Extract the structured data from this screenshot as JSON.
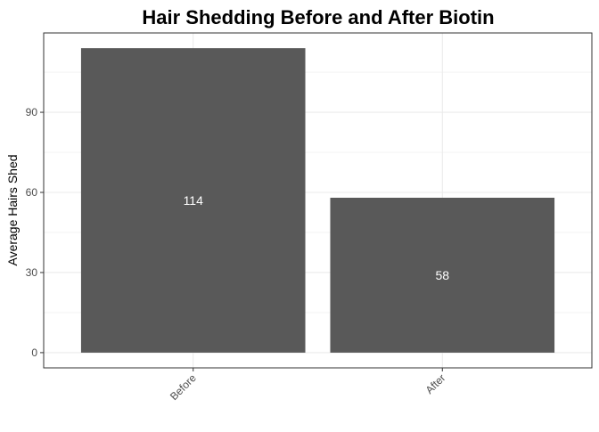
{
  "chart_data": {
    "type": "bar",
    "title": "Hair Shedding Before and After Biotin",
    "xlabel": "",
    "ylabel": "Average Hairs Shed",
    "categories": [
      "Before",
      "After"
    ],
    "values": [
      114,
      58
    ],
    "value_labels": [
      "114",
      "58"
    ],
    "yticks": [
      0,
      30,
      60,
      90
    ],
    "ytick_labels": [
      "0",
      "30",
      "60",
      "90"
    ],
    "ylim": [
      -5.7,
      119.7
    ],
    "grid": true,
    "legend": "none",
    "bar_color": "#595959",
    "label_color": "#ffffff",
    "grid_color": "#ebebeb",
    "panel_border_color": "#333333"
  }
}
